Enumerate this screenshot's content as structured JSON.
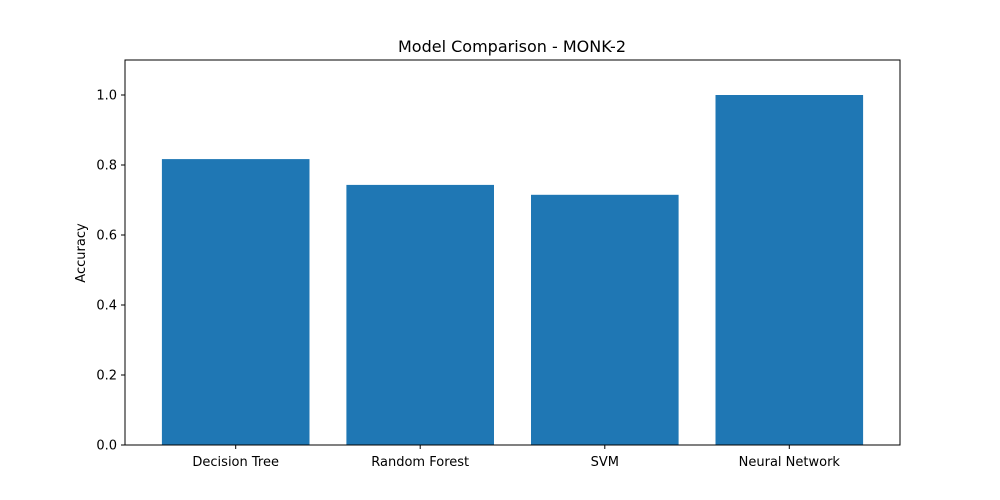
{
  "chart_data": {
    "type": "bar",
    "title": "Model Comparison - MONK-2",
    "xlabel": "",
    "ylabel": "Accuracy",
    "categories": [
      "Decision Tree",
      "Random Forest",
      "SVM",
      "Neural Network"
    ],
    "values": [
      0.817,
      0.743,
      0.715,
      1.0
    ],
    "ylim": [
      0,
      1.1
    ],
    "yticks": [
      0.0,
      0.2,
      0.4,
      0.6,
      0.8,
      1.0
    ],
    "ytick_labels": [
      "0.0",
      "0.2",
      "0.4",
      "0.6",
      "0.8",
      "1.0"
    ],
    "bar_color": "#1f77b4",
    "grid": false,
    "legend": "none"
  }
}
